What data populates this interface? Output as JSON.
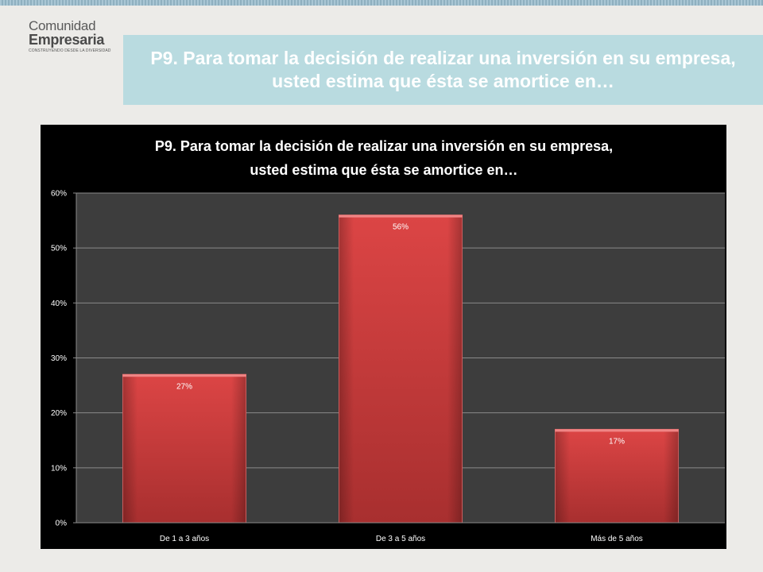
{
  "logo": {
    "line1": "Comunidad",
    "line2": "Empresaria",
    "tagline": "CONSTRUYENDO DESDE LA DIVERSIDAD"
  },
  "slide_title": "P9. Para tomar la decisión de realizar una inversión en su empresa, usted estima que ésta se amortice en…",
  "colors": {
    "background": "#ecebe8",
    "banner": "#b9dbe0",
    "chart_bg": "#000000",
    "plot_bg": "#3d3d3d",
    "bar": "#c9393a"
  },
  "chart_data": {
    "type": "bar",
    "title_lines": [
      "P9. Para tomar la decisión de realizar una inversión en su empresa,",
      "usted estima que ésta se amortice en…"
    ],
    "categories": [
      "De 1 a 3 años",
      "De 3 a 5 años",
      "Más de 5 años"
    ],
    "values": [
      27,
      56,
      17
    ],
    "value_labels": [
      "27%",
      "56%",
      "17%"
    ],
    "ylim": [
      0,
      60
    ],
    "yticks": [
      0,
      10,
      20,
      30,
      40,
      50,
      60
    ],
    "ytick_labels": [
      "0%",
      "10%",
      "20%",
      "30%",
      "40%",
      "50%",
      "60%"
    ],
    "grid": true,
    "legend": "none"
  }
}
